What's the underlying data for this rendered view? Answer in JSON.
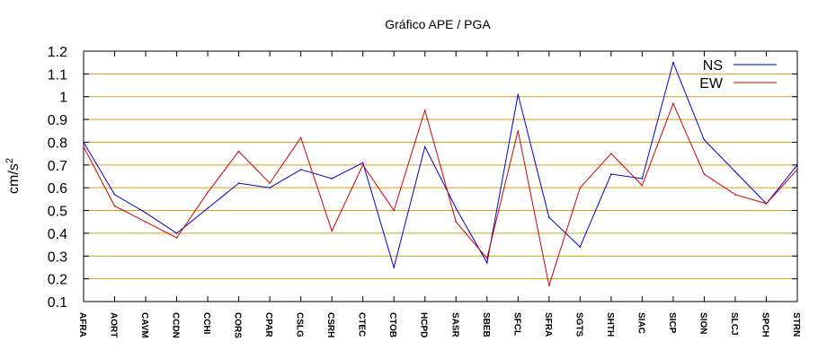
{
  "chart_data": {
    "type": "line",
    "title": "Gráfico  APE / PGA",
    "xlabel": "",
    "ylabel": "cm/s",
    "ylabel_exponent": "2",
    "ylim": [
      0.1,
      1.2
    ],
    "yticks": [
      "0.1",
      "0.2",
      "0.3",
      "0.4",
      "0.5",
      "0.6",
      "0.7",
      "0.8",
      "0.9",
      "1",
      "1.1",
      "1.2"
    ],
    "grid": true,
    "grid_color": "#d4a017",
    "legend_position": "top-right",
    "categories": [
      "AFRA",
      "AORT",
      "CAVM",
      "CCDN",
      "CCHI",
      "CORS",
      "CPAR",
      "CSLG",
      "CSRH",
      "CTEC",
      "CTOB",
      "HCPD",
      "SASR",
      "SBEB",
      "SFCL",
      "SFRA",
      "SGTS",
      "SHTH",
      "SIAC",
      "SICP",
      "SION",
      "SLCJ",
      "SPCH",
      "STRN"
    ],
    "series": [
      {
        "name": "NS",
        "color": "#0000cc",
        "values": [
          0.8,
          0.57,
          0.49,
          0.4,
          0.51,
          0.62,
          0.6,
          0.68,
          0.64,
          0.71,
          0.25,
          0.78,
          0.51,
          0.27,
          1.01,
          0.47,
          0.34,
          0.66,
          0.64,
          1.15,
          0.81,
          0.67,
          0.53,
          0.7
        ]
      },
      {
        "name": "EW",
        "color": "#cc0000",
        "values": [
          0.78,
          0.52,
          0.45,
          0.38,
          0.58,
          0.76,
          0.62,
          0.82,
          0.41,
          0.7,
          0.5,
          0.94,
          0.45,
          0.29,
          0.85,
          0.17,
          0.6,
          0.75,
          0.61,
          0.97,
          0.66,
          0.57,
          0.53,
          0.68
        ]
      }
    ]
  }
}
